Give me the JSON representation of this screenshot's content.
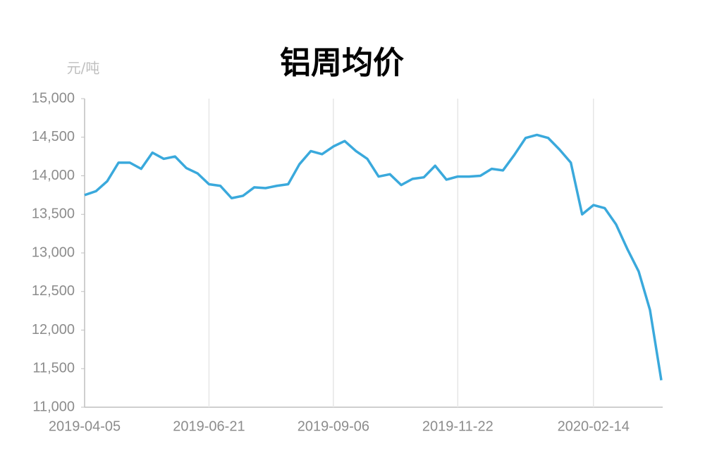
{
  "chart_data": {
    "type": "line",
    "title": "铝周均价",
    "y_label": "元/吨",
    "categories": [
      "2019-04-05",
      null,
      null,
      null,
      null,
      null,
      null,
      null,
      null,
      null,
      null,
      "2019-06-21",
      null,
      null,
      null,
      null,
      null,
      null,
      null,
      null,
      null,
      null,
      "2019-09-06",
      null,
      null,
      null,
      null,
      null,
      null,
      null,
      null,
      null,
      null,
      "2019-11-22",
      null,
      null,
      null,
      null,
      null,
      null,
      null,
      null,
      null,
      null,
      null,
      "2020-02-14",
      null,
      null,
      null,
      null,
      null,
      null
    ],
    "series": [
      {
        "name": "铝周均价",
        "color": "#3aa9dc",
        "values": [
          13750,
          13800,
          13930,
          14170,
          14170,
          14090,
          14300,
          14220,
          14250,
          14100,
          14030,
          13890,
          13870,
          13710,
          13740,
          13850,
          13840,
          13870,
          13890,
          14150,
          14320,
          14280,
          14380,
          14450,
          14320,
          14220,
          13990,
          14020,
          13880,
          13960,
          13980,
          14130,
          13950,
          13990,
          13990,
          14000,
          14090,
          14070,
          14270,
          14490,
          14530,
          14490,
          14340,
          14170,
          13500,
          13620,
          13580,
          13370,
          13050,
          12760,
          12260,
          11350
        ]
      }
    ],
    "ylim": [
      11000,
      15000
    ],
    "yticks": [
      {
        "value": 11000,
        "label": "11,000"
      },
      {
        "value": 11500,
        "label": "11,500"
      },
      {
        "value": 12000,
        "label": "12,000"
      },
      {
        "value": 12500,
        "label": "12,500"
      },
      {
        "value": 13000,
        "label": "13,000"
      },
      {
        "value": 13500,
        "label": "13,500"
      },
      {
        "value": 14000,
        "label": "14,000"
      },
      {
        "value": 14500,
        "label": "14,500"
      },
      {
        "value": 15000,
        "label": "15,000"
      }
    ],
    "grid": true
  }
}
